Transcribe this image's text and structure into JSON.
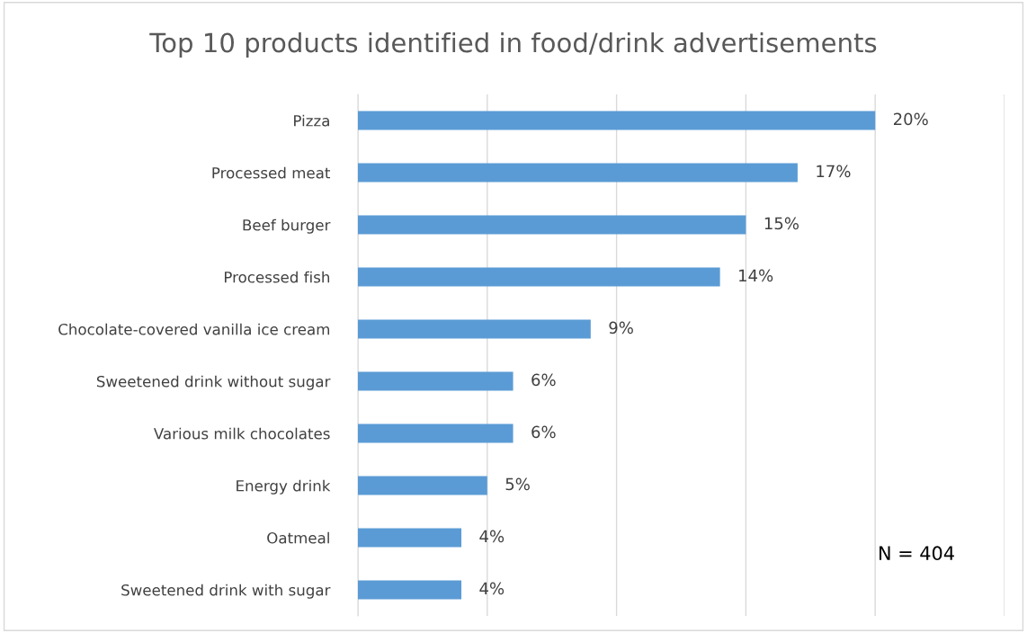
{
  "chart_data": {
    "type": "bar",
    "orientation": "horizontal",
    "title": "Top 10 products identified in food/drink advertisements",
    "categories": [
      "Pizza",
      "Processed meat",
      "Beef burger",
      "Processed fish",
      "Chocolate-covered vanilla ice cream",
      "Sweetened drink without sugar",
      "Various milk chocolates",
      "Energy drink",
      "Oatmeal",
      "Sweetened drink with sugar"
    ],
    "values": [
      20,
      17,
      15,
      14,
      9,
      6,
      6,
      5,
      4,
      4
    ],
    "value_labels": [
      "20%",
      "17%",
      "15%",
      "14%",
      "9%",
      "6%",
      "6%",
      "5%",
      "4%",
      "4%"
    ],
    "color": "#5b9bd5",
    "xlim": [
      0,
      25
    ],
    "xticks": [
      0,
      5,
      10,
      15,
      20,
      25
    ],
    "tick_labels": "y",
    "grid": "x",
    "annotations": [
      "N = 404"
    ]
  }
}
